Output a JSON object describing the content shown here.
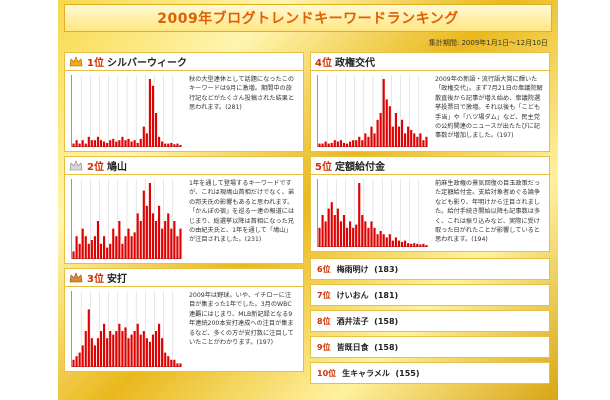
{
  "title": "2009年ブログトレンドキーワードランキング",
  "period": "集計期間: 2009年1月1日～12月10日",
  "colors": {
    "accent": "#d03000",
    "bar": "#e00000",
    "gold": "#e9b81c"
  },
  "rankings": [
    {
      "rank": "1位",
      "keyword": "シルバーウィーク",
      "icon": "gold-crown-icon",
      "desc": "秋の大型連休として話題になったこのキーワードは9月に激増。期間中の旅行記などがたくさん投稿された結果と思われます。(281)"
    },
    {
      "rank": "2位",
      "keyword": "鳩山",
      "icon": "silver-crown-icon",
      "desc": "1年を通して登場するキーワードですが、これは現鳩山首相だけでなく、弟の邦夫氏の影響もあると思われます。「かんぽの宿」を巡る一連の報道にはじまり、総選挙以降は首相になった兄の由紀夫氏と、1年を通して「鳩山」が注目されました。(231)"
    },
    {
      "rank": "3位",
      "keyword": "安打",
      "icon": "bronze-crown-icon",
      "desc": "2009年は野球。いや、イチローに注目が集まった1年でした。3月のWBC連覇にはじまり、MLB新記録となる9年連続200本安打達成への注目が集まるなど、多くの方が安打数に注目していたことがわかります。(197)"
    },
    {
      "rank": "4位",
      "keyword": "政権交代",
      "icon": "",
      "desc": "2009年の新語・流行語大賞に輝いた「政権交代」。まず7月21日の衆議院解散直後から記事が増え始め、衆議院選挙投票日で激増。それ以後も「こども手当」や「八ツ場ダム」など、民主党の公約関連のニュースが出たたびに記事数が増加しました。(197)"
    },
    {
      "rank": "5位",
      "keyword": "定額給付金",
      "icon": "",
      "desc": "前麻生政権の景気回復の目玉政策だった定額給付金。支給対象者めぐる論争なども影り、年明けから注目されました。給付手続き開始以降も記事数は多く、これは振り込みなど、実際に受け取った日がれたことが影響していると思われます。(194)"
    }
  ],
  "lower_ranks": [
    {
      "rank": "6位",
      "keyword": "梅雨明け",
      "count": "(183)"
    },
    {
      "rank": "7位",
      "keyword": "けいおん",
      "count": "(181)"
    },
    {
      "rank": "8位",
      "keyword": "酒井法子",
      "count": "(158)"
    },
    {
      "rank": "9位",
      "keyword": "皆既日食",
      "count": "(158)"
    },
    {
      "rank": "10位",
      "keyword": "生キャラメル",
      "count": "(155)"
    }
  ],
  "sparklines": [
    {
      "name": "silver-week",
      "values": [
        0.05,
        0.1,
        0.05,
        0.1,
        0.05,
        0.15,
        0.1,
        0.1,
        0.15,
        0.1,
        0.08,
        0.06,
        0.1,
        0.12,
        0.08,
        0.1,
        0.15,
        0.1,
        0.12,
        0.08,
        0.1,
        0.06,
        0.12,
        0.3,
        0.2,
        1.0,
        0.9,
        0.5,
        0.15,
        0.08,
        0.05,
        0.05,
        0.06,
        0.04,
        0.05,
        0.03
      ]
    },
    {
      "name": "hatoyama",
      "values": [
        0.1,
        0.3,
        0.2,
        0.4,
        0.3,
        0.2,
        0.25,
        0.3,
        0.5,
        0.2,
        0.3,
        0.15,
        0.2,
        0.4,
        0.3,
        0.5,
        0.2,
        0.3,
        0.4,
        0.3,
        0.35,
        0.6,
        0.5,
        0.9,
        0.7,
        1.0,
        0.6,
        0.5,
        0.7,
        0.4,
        0.5,
        0.6,
        0.4,
        0.5,
        0.3,
        0.4
      ]
    },
    {
      "name": "anda",
      "values": [
        0.1,
        0.15,
        0.2,
        0.3,
        0.5,
        0.8,
        0.4,
        0.3,
        0.4,
        0.5,
        0.6,
        0.4,
        0.5,
        0.45,
        0.5,
        0.6,
        0.5,
        0.55,
        0.4,
        0.45,
        0.5,
        0.6,
        0.45,
        0.5,
        0.4,
        0.35,
        0.45,
        0.5,
        0.6,
        0.4,
        0.2,
        0.15,
        0.1,
        0.1,
        0.05,
        0.05
      ]
    },
    {
      "name": "seiken-kotai",
      "values": [
        0.05,
        0.05,
        0.08,
        0.05,
        0.06,
        0.1,
        0.08,
        0.1,
        0.06,
        0.05,
        0.08,
        0.1,
        0.1,
        0.15,
        0.1,
        0.2,
        0.15,
        0.3,
        0.2,
        0.4,
        0.5,
        1.0,
        0.7,
        0.6,
        0.3,
        0.5,
        0.3,
        0.4,
        0.2,
        0.3,
        0.25,
        0.2,
        0.15,
        0.2,
        0.1,
        0.15
      ]
    },
    {
      "name": "teigaku-kyufukin",
      "values": [
        0.3,
        0.5,
        0.4,
        0.6,
        0.7,
        0.5,
        0.6,
        0.4,
        0.5,
        0.3,
        0.4,
        0.3,
        0.35,
        1.0,
        0.5,
        0.4,
        0.3,
        0.4,
        0.3,
        0.2,
        0.25,
        0.2,
        0.15,
        0.2,
        0.1,
        0.15,
        0.1,
        0.08,
        0.1,
        0.06,
        0.05,
        0.06,
        0.05,
        0.04,
        0.05,
        0.03
      ]
    }
  ]
}
